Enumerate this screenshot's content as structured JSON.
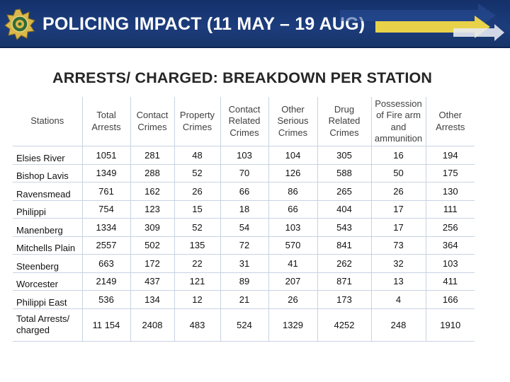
{
  "banner": {
    "title": "POLICING IMPACT (11 MAY – 19 AUG)",
    "logo_icon": "police-badge-icon",
    "colors": {
      "background": "#1c3c7c",
      "text": "#ffffff"
    }
  },
  "subtitle": "ARRESTS/ CHARGED: BREAKDOWN PER STATION",
  "table": {
    "headers": [
      "Stations",
      "Total Arrests",
      "Contact Crimes",
      "Property Crimes",
      "Contact Related Crimes",
      "Other Serious Crimes",
      "Drug Related Crimes",
      "Possession of Fire arm and ammunition",
      "Other Arrests"
    ],
    "rows": [
      [
        "Elsies River",
        "1051",
        "281",
        "48",
        "103",
        "104",
        "305",
        "16",
        "194"
      ],
      [
        "Bishop Lavis",
        "1349",
        "288",
        "52",
        "70",
        "126",
        "588",
        "50",
        "175"
      ],
      [
        "Ravensmead",
        "761",
        "162",
        "26",
        "66",
        "86",
        "265",
        "26",
        "130"
      ],
      [
        "Philippi",
        "754",
        "123",
        "15",
        "18",
        "66",
        "404",
        "17",
        "111"
      ],
      [
        "Manenberg",
        "1334",
        "309",
        "52",
        "54",
        "103",
        "543",
        "17",
        "256"
      ],
      [
        "Mitchells Plain",
        "2557",
        "502",
        "135",
        "72",
        "570",
        "841",
        "73",
        "364"
      ],
      [
        "Steenberg",
        "663",
        "172",
        "22",
        "31",
        "41",
        "262",
        "32",
        "103"
      ],
      [
        "Worcester",
        "2149",
        "437",
        "121",
        "89",
        "207",
        "871",
        "13",
        "411"
      ],
      [
        "Philippi East",
        "536",
        "134",
        "12",
        "21",
        "26",
        "173",
        "4",
        "166"
      ]
    ],
    "total_row": [
      "Total Arrests/ charged",
      "11 154",
      "2408",
      "483",
      "524",
      "1329",
      "4252",
      "248",
      "1910"
    ]
  }
}
